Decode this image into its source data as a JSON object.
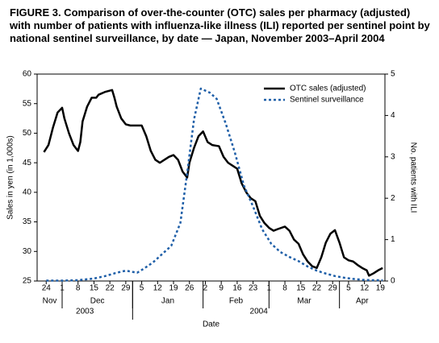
{
  "chart_data": {
    "type": "line",
    "title": "FIGURE 3. Comparison of over-the-counter (OTC) sales per pharmacy (adjusted) with number of patients with influenza-like illness (ILI) reported per sentinel point by national sentinel surveillance, by date — Japan, November 2003–April 2004",
    "x_label": "Date",
    "y_label": "Sales in yen (in 1,000s)",
    "y2_label": "No. patients with ILI",
    "xlim": [
      "2003-11-20",
      "2004-04-21"
    ],
    "xticks": [
      {
        "value": "2003-11-24",
        "label": "24"
      },
      {
        "value": "2003-12-01",
        "label": "1"
      },
      {
        "value": "2003-12-08",
        "label": "8"
      },
      {
        "value": "2003-12-15",
        "label": "15"
      },
      {
        "value": "2003-12-22",
        "label": "22"
      },
      {
        "value": "2003-12-29",
        "label": "29"
      },
      {
        "value": "2004-01-05",
        "label": "5"
      },
      {
        "value": "2004-01-12",
        "label": "12"
      },
      {
        "value": "2004-01-19",
        "label": "19"
      },
      {
        "value": "2004-01-26",
        "label": "26"
      },
      {
        "value": "2004-02-02",
        "label": "2"
      },
      {
        "value": "2004-02-09",
        "label": "9"
      },
      {
        "value": "2004-02-16",
        "label": "16"
      },
      {
        "value": "2004-02-23",
        "label": "23"
      },
      {
        "value": "2004-03-01",
        "label": "1"
      },
      {
        "value": "2004-03-08",
        "label": "8"
      },
      {
        "value": "2004-03-15",
        "label": "15"
      },
      {
        "value": "2004-03-22",
        "label": "22"
      },
      {
        "value": "2004-03-29",
        "label": "29"
      },
      {
        "value": "2004-04-05",
        "label": "5"
      },
      {
        "value": "2004-04-12",
        "label": "12"
      },
      {
        "value": "2004-04-19",
        "label": "19"
      }
    ],
    "month_ticks": [
      {
        "value": "2003-11-01",
        "label": "Nov"
      },
      {
        "value": "2003-12-01",
        "label": "Dec"
      },
      {
        "value": "2004-01-01",
        "label": "Jan"
      },
      {
        "value": "2004-02-01",
        "label": "Feb"
      },
      {
        "value": "2004-03-01",
        "label": "Mar"
      },
      {
        "value": "2004-04-01",
        "label": "Apr"
      }
    ],
    "year_ticks": [
      {
        "value": "2003-01-01",
        "label": "2003"
      },
      {
        "value": "2004-01-01",
        "label": "2004"
      }
    ],
    "ylim": [
      25,
      60
    ],
    "yticks": [
      25,
      30,
      35,
      40,
      45,
      50,
      55,
      60
    ],
    "y2lim": [
      0,
      5
    ],
    "y2ticks": [
      0,
      1,
      2,
      3,
      4,
      5
    ],
    "legend": "top-right",
    "series": [
      {
        "name": "OTC sales (adjusted)",
        "color": "#000000",
        "style": "solid",
        "axis": "y",
        "x": [
          "2003-11-23",
          "2003-11-25",
          "2003-11-27",
          "2003-11-29",
          "2003-12-01",
          "2003-12-02",
          "2003-12-04",
          "2003-12-06",
          "2003-12-08",
          "2003-12-09",
          "2003-12-10",
          "2003-12-12",
          "2003-12-14",
          "2003-12-16",
          "2003-12-17",
          "2003-12-20",
          "2003-12-23",
          "2003-12-24",
          "2003-12-25",
          "2003-12-27",
          "2003-12-29",
          "2003-12-31",
          "2004-01-02",
          "2004-01-05",
          "2004-01-07",
          "2004-01-09",
          "2004-01-11",
          "2004-01-13",
          "2004-01-15",
          "2004-01-17",
          "2004-01-19",
          "2004-01-21",
          "2004-01-23",
          "2004-01-25",
          "2004-01-26",
          "2004-01-28",
          "2004-01-30",
          "2004-02-01",
          "2004-02-03",
          "2004-02-05",
          "2004-02-08",
          "2004-02-10",
          "2004-02-12",
          "2004-02-14",
          "2004-02-16",
          "2004-02-18",
          "2004-02-20",
          "2004-02-22",
          "2004-02-24",
          "2004-02-26",
          "2004-02-28",
          "2004-03-01",
          "2004-03-03",
          "2004-03-05",
          "2004-03-08",
          "2004-03-10",
          "2004-03-12",
          "2004-03-14",
          "2004-03-16",
          "2004-03-18",
          "2004-03-20",
          "2004-03-22",
          "2004-03-24",
          "2004-03-26",
          "2004-03-28",
          "2004-03-30",
          "2004-04-01",
          "2004-04-03",
          "2004-04-05",
          "2004-04-07",
          "2004-04-09",
          "2004-04-11",
          "2004-04-13",
          "2004-04-14",
          "2004-04-16",
          "2004-04-18",
          "2004-04-20"
        ],
        "values": [
          46.8,
          48,
          51,
          53.5,
          54.3,
          52.5,
          50,
          48,
          47,
          48.5,
          52,
          54.5,
          56,
          56,
          56.5,
          57,
          57.3,
          56,
          54.5,
          52.5,
          51.5,
          51.3,
          51.3,
          51.3,
          49.5,
          47,
          45.5,
          45,
          45.5,
          46,
          46.3,
          45.5,
          43.5,
          42.5,
          45,
          47.5,
          49.5,
          50.3,
          48.5,
          48,
          47.8,
          46,
          45,
          44.5,
          44,
          41.5,
          40,
          39,
          38.5,
          36,
          34.8,
          34,
          33.5,
          33.8,
          34.2,
          33.5,
          32,
          31.3,
          29.5,
          28.3,
          27.5,
          27.2,
          29,
          31.5,
          33,
          33.6,
          31.5,
          29,
          28.5,
          28.3,
          27.7,
          27.2,
          26.8,
          25.9,
          26.3,
          26.8,
          27.2
        ]
      },
      {
        "name": "Sentinel surveillance",
        "color": "#1f5fa8",
        "style": "dotted",
        "axis": "y2",
        "x": [
          "2003-11-24",
          "2003-12-01",
          "2003-12-08",
          "2003-12-15",
          "2003-12-20",
          "2003-12-25",
          "2003-12-29",
          "2004-01-03",
          "2004-01-06",
          "2004-01-10",
          "2004-01-14",
          "2004-01-18",
          "2004-01-22",
          "2004-01-25",
          "2004-01-28",
          "2004-01-31",
          "2004-02-04",
          "2004-02-07",
          "2004-02-11",
          "2004-02-15",
          "2004-02-19",
          "2004-02-23",
          "2004-02-27",
          "2004-03-02",
          "2004-03-06",
          "2004-03-10",
          "2004-03-14",
          "2004-03-18",
          "2004-03-22",
          "2004-03-26",
          "2004-03-30",
          "2004-04-03",
          "2004-04-07",
          "2004-04-11",
          "2004-04-15",
          "2004-04-20"
        ],
        "values": [
          0.01,
          0.01,
          0.02,
          0.06,
          0.12,
          0.2,
          0.25,
          0.2,
          0.3,
          0.45,
          0.65,
          0.85,
          1.4,
          2.6,
          3.9,
          4.65,
          4.55,
          4.4,
          3.8,
          3.1,
          2.3,
          1.8,
          1.25,
          0.9,
          0.7,
          0.58,
          0.48,
          0.35,
          0.25,
          0.18,
          0.12,
          0.08,
          0.05,
          0.03,
          0.02,
          0.02
        ]
      }
    ]
  }
}
